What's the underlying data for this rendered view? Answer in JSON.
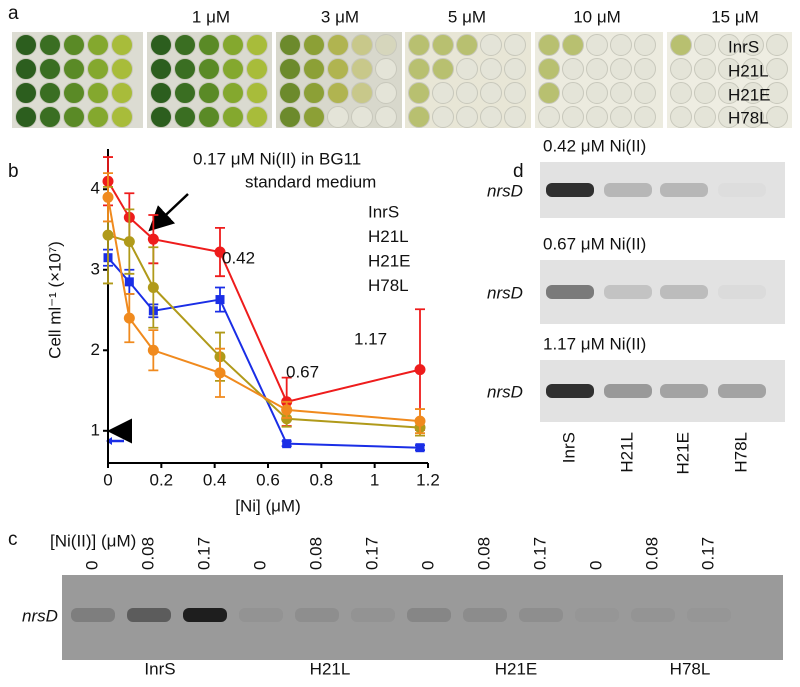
{
  "panel_a": {
    "label": "a",
    "concentrations": [
      "1 μM",
      "3 μM",
      "5 μM",
      "10 μM",
      "15 μM"
    ],
    "strains": [
      "InrS",
      "H21L",
      "H21E",
      "H78L"
    ]
  },
  "chart_data": {
    "type": "line",
    "label": "b",
    "xlabel": "[Ni] (μM)",
    "ylabel": "Cell ml⁻¹ (×10⁷)",
    "x": [
      0,
      0.08,
      0.17,
      0.42,
      0.67,
      1.17
    ],
    "series": [
      {
        "name": "InrS",
        "color": "#ee1c1c",
        "values": [
          4.1,
          3.65,
          3.38,
          3.22,
          1.36,
          1.76
        ],
        "errors": [
          0.3,
          0.3,
          0.3,
          0.3,
          0.3,
          0.75
        ]
      },
      {
        "name": "H21L",
        "color": "#1a2ee6",
        "values": [
          3.15,
          2.85,
          2.49,
          2.63,
          0.84,
          0.79
        ],
        "errors": [
          0.1,
          0.15,
          0.08,
          0.15,
          0.03,
          0.03
        ]
      },
      {
        "name": "H21E",
        "color": "#b09a1a",
        "values": [
          3.43,
          3.35,
          2.78,
          1.92,
          1.15,
          1.04
        ],
        "errors": [
          0.6,
          0.4,
          0.5,
          0.3,
          0.1,
          0.1
        ]
      },
      {
        "name": "H78L",
        "color": "#f08a1e",
        "values": [
          3.9,
          2.4,
          2.0,
          1.72,
          1.26,
          1.12
        ],
        "errors": [
          0.3,
          0.3,
          0.25,
          0.3,
          0.1,
          0.15
        ]
      }
    ],
    "xlim": [
      0,
      1.2
    ],
    "xticks": [
      0,
      0.2,
      0.4,
      0.6,
      0.8,
      1,
      1.2
    ],
    "ylim": [
      0.6,
      4.5
    ],
    "yticks": [
      1,
      2,
      3,
      4
    ],
    "annotation": [
      "0.17 μM Ni(II) in BG11",
      "standard medium"
    ],
    "point_labels": [
      "0.42",
      "0.67",
      "1.17"
    ],
    "legend": "upper right"
  },
  "panel_c": {
    "label": "c",
    "axis_label": "[Ni(II)] (μM)",
    "lanes": [
      "0",
      "0.08",
      "0.17"
    ],
    "gene": "nrsD",
    "strains": [
      "InrS",
      "H21L",
      "H21E",
      "H78L"
    ]
  },
  "panel_d": {
    "label": "d",
    "gels": [
      {
        "title": "0.42 μM Ni(II)",
        "gene": "nrsD"
      },
      {
        "title": "0.67 μM Ni(II)",
        "gene": "nrsD"
      },
      {
        "title": "1.17 μM Ni(II)",
        "gene": "nrsD"
      }
    ],
    "lanes": [
      "InrS",
      "H21L",
      "H21E",
      "H78L"
    ]
  }
}
